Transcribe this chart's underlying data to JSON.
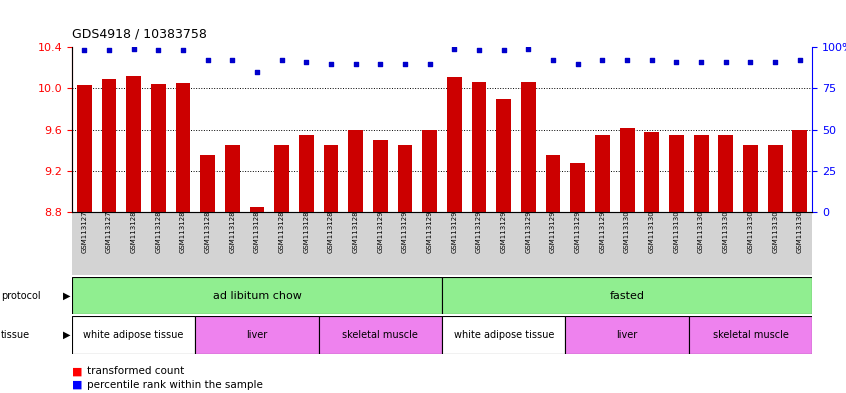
{
  "title": "GDS4918 / 10383758",
  "samples": [
    "GSM1131278",
    "GSM1131279",
    "GSM1131280",
    "GSM1131281",
    "GSM1131282",
    "GSM1131283",
    "GSM1131284",
    "GSM1131285",
    "GSM1131286",
    "GSM1131287",
    "GSM1131288",
    "GSM1131289",
    "GSM1131290",
    "GSM1131291",
    "GSM1131292",
    "GSM1131293",
    "GSM1131294",
    "GSM1131295",
    "GSM1131296",
    "GSM1131297",
    "GSM1131298",
    "GSM1131299",
    "GSM1131300",
    "GSM1131301",
    "GSM1131302",
    "GSM1131303",
    "GSM1131304",
    "GSM1131305",
    "GSM1131306",
    "GSM1131307"
  ],
  "bar_values": [
    10.03,
    10.09,
    10.12,
    10.04,
    10.05,
    9.35,
    9.45,
    8.85,
    9.45,
    9.55,
    9.45,
    9.6,
    9.5,
    9.45,
    9.6,
    10.11,
    10.06,
    9.9,
    10.06,
    9.35,
    9.28,
    9.55,
    9.62,
    9.58,
    9.55,
    9.55,
    9.55,
    9.45,
    9.45,
    9.6
  ],
  "percentile_values": [
    98,
    98,
    99,
    98,
    98,
    92,
    92,
    85,
    92,
    91,
    90,
    90,
    90,
    90,
    90,
    99,
    98,
    98,
    99,
    92,
    90,
    92,
    92,
    92,
    91,
    91,
    91,
    91,
    91,
    92
  ],
  "ylim_left": [
    8.8,
    10.4
  ],
  "ylim_right": [
    0,
    100
  ],
  "yticks_left": [
    8.8,
    9.2,
    9.6,
    10.0,
    10.4
  ],
  "yticks_right": [
    0,
    25,
    50,
    75,
    100
  ],
  "bar_color": "#cc0000",
  "dot_color": "#0000cc",
  "background_color": "#ffffff",
  "protocol_labels": [
    "ad libitum chow",
    "fasted"
  ],
  "protocol_ranges": [
    [
      0,
      15
    ],
    [
      15,
      30
    ]
  ],
  "protocol_color": "#90ee90",
  "tissue_labels": [
    "white adipose tissue",
    "liver",
    "skeletal muscle",
    "white adipose tissue",
    "liver",
    "skeletal muscle"
  ],
  "tissue_ranges": [
    [
      0,
      5
    ],
    [
      5,
      10
    ],
    [
      10,
      15
    ],
    [
      15,
      20
    ],
    [
      20,
      25
    ],
    [
      25,
      30
    ]
  ],
  "tissue_colors": [
    "#ffffff",
    "#ee82ee",
    "#ee82ee",
    "#ffffff",
    "#ee82ee",
    "#ee82ee"
  ],
  "xtick_bg_color": "#d3d3d3"
}
